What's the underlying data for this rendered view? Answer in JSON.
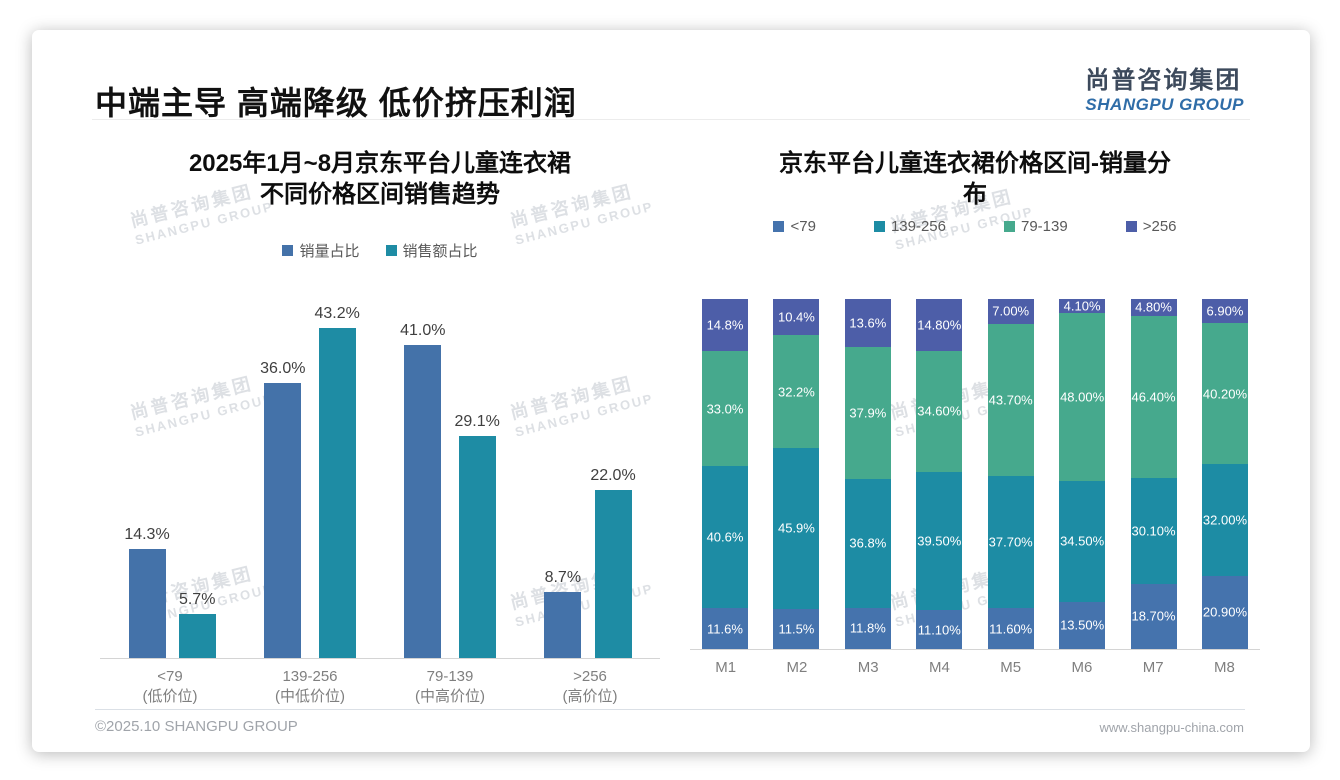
{
  "header": {
    "title": "中端主导 高端降级 低价挤压利润"
  },
  "logo": {
    "cn": "尚普咨询集团",
    "en": "SHANGPU GROUP",
    "cn_color": "#3d4a5c",
    "en_color": "#2f6da8"
  },
  "watermark": {
    "cn": "尚普咨询集团",
    "en": "SHANGPU GROUP"
  },
  "footer": {
    "left": "©2025.10 SHANGPU GROUP",
    "right": "www.shangpu-china.com"
  },
  "chart_data": [
    {
      "type": "bar",
      "title": "2025年1月~8月京东平台儿童连衣裙\n不同价格区间销售趋势",
      "categories": [
        "<79\n(低价位)",
        "139-256\n(中低价位)",
        "79-139\n(中高价位)",
        ">256\n(高价位)"
      ],
      "series": [
        {
          "name": "销量占比",
          "color": "#4472a9",
          "values": [
            14.3,
            36.0,
            41.0,
            8.7
          ],
          "labels": [
            "14.3%",
            "36.0%",
            "41.0%",
            "8.7%"
          ]
        },
        {
          "name": "销售额占比",
          "color": "#1e8ca4",
          "values": [
            5.7,
            43.2,
            29.1,
            22.0
          ],
          "labels": [
            "5.7%",
            "43.2%",
            "29.1%",
            "22.0%"
          ]
        }
      ],
      "xlabel": "",
      "ylabel": "",
      "ylim": [
        0,
        45
      ],
      "grid": false,
      "legend_position": "top",
      "value_labels": "above-bars",
      "axis": "hidden-y"
    },
    {
      "type": "stacked-bar",
      "title": "京东平台儿童连衣裙价格区间-销量分布",
      "categories": [
        "M1",
        "M2",
        "M3",
        "M4",
        "M5",
        "M6",
        "M7",
        "M8"
      ],
      "series": [
        {
          "name": "<79",
          "color": "#4573ad",
          "values": [
            11.6,
            11.5,
            11.8,
            11.1,
            11.6,
            13.5,
            18.7,
            20.9
          ],
          "labels": [
            "11.6%",
            "11.5%",
            "11.8%",
            "11.10%",
            "11.60%",
            "13.50%",
            "18.70%",
            "20.90%"
          ]
        },
        {
          "name": "139-256",
          "color": "#1d8ca4",
          "values": [
            40.6,
            45.9,
            36.8,
            39.5,
            37.7,
            34.5,
            30.1,
            32.0
          ],
          "labels": [
            "40.6%",
            "45.9%",
            "36.8%",
            "39.50%",
            "37.70%",
            "34.50%",
            "30.10%",
            "32.00%"
          ]
        },
        {
          "name": "79-139",
          "color": "#46a98d",
          "values": [
            33.0,
            32.2,
            37.9,
            34.6,
            43.7,
            48.0,
            46.4,
            40.2
          ],
          "labels": [
            "33.0%",
            "32.2%",
            "37.9%",
            "34.60%",
            "43.70%",
            "48.00%",
            "46.40%",
            "40.20%"
          ]
        },
        {
          "name": ">256",
          "color": "#4d5ea8",
          "values": [
            14.8,
            10.4,
            13.6,
            14.8,
            7.0,
            4.1,
            4.8,
            6.9
          ],
          "labels": [
            "14.8%",
            "10.4%",
            "13.6%",
            "14.80%",
            "7.00%",
            "4.10%",
            "4.80%",
            "6.90%"
          ]
        }
      ],
      "xlabel": "",
      "ylabel": "",
      "ylim": [
        0,
        100
      ],
      "grid": false,
      "legend_position": "top",
      "stack_order": "bottom-to-top",
      "value_labels": "inside-segments-white",
      "axis": "hidden-y"
    }
  ]
}
